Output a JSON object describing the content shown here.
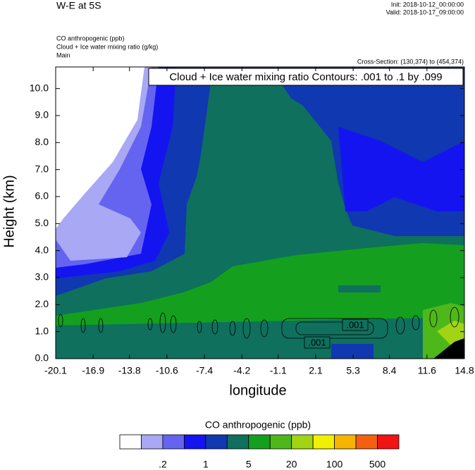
{
  "header": {
    "title": "W-E at 5S",
    "init": "Init: 2018-10-12_00:00:00",
    "valid": "Valid: 2018-10-17_09:00:00",
    "fields": [
      "CO anthropogenic   (ppb)",
      "Cloud + Ice water mixing ratio   (g/kg)",
      "Main"
    ],
    "cross_section": "Cross-Section: (130,374) to (454,374)"
  },
  "chart_data": {
    "type": "contour",
    "contour_title": "Cloud + Ice water mixing ratio Contours: .001 to .1 by .099",
    "contour_labels": [
      ".001",
      ".001"
    ],
    "xlabel": "longitude",
    "ylabel": "Height (km)",
    "xlim": [
      -20.1,
      14.8
    ],
    "ylim": [
      0,
      10.8
    ],
    "xticks": [
      -20.1,
      -16.9,
      -13.8,
      -10.6,
      -7.4,
      -4.2,
      -1.1,
      2.1,
      5.3,
      8.4,
      11.6,
      14.8
    ],
    "yticks": [
      {
        "value": 0,
        "label": "0.0"
      },
      {
        "value": 1,
        "label": "1.0"
      },
      {
        "value": 2,
        "label": "2.0"
      },
      {
        "value": 3,
        "label": "3.0"
      },
      {
        "value": 4,
        "label": "4.0"
      },
      {
        "value": 5,
        "label": "5.0"
      },
      {
        "value": 6,
        "label": "6.0"
      },
      {
        "value": 7,
        "label": "7.0"
      },
      {
        "value": 8,
        "label": "8.0"
      },
      {
        "value": 9,
        "label": "9.0"
      },
      {
        "value": 10,
        "label": "10.0"
      }
    ],
    "colorbar": {
      "title": "CO anthropogenic  (ppb)",
      "colors": [
        "#ffffff",
        "#a8a8f4",
        "#6464f0",
        "#1414f0",
        "#1038b0",
        "#0f705e",
        "#14a01e",
        "#4eb81a",
        "#a2d414",
        "#f0f000",
        "#f6b400",
        "#f46010",
        "#f01414"
      ],
      "ticks": [
        {
          "value": 0.2,
          "label": ".2"
        },
        1,
        5,
        20,
        100,
        500
      ]
    }
  }
}
